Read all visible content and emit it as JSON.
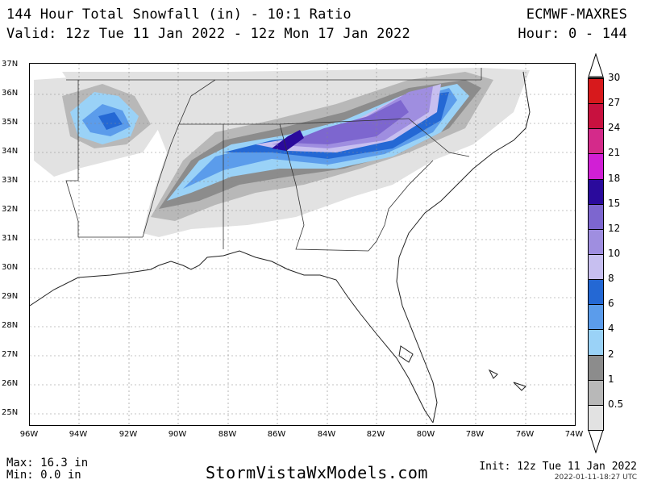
{
  "header": {
    "title": "144 Hour Total Snowfall (in) - 10:1 Ratio",
    "valid": "Valid: 12z Tue 11 Jan 2022 - 12z Mon 17 Jan 2022",
    "model": "ECMWF-MAXRES",
    "hour": "Hour: 0 - 144"
  },
  "map": {
    "lat_labels": [
      "37N",
      "36N",
      "35N",
      "34N",
      "33N",
      "32N",
      "31N",
      "30N",
      "29N",
      "28N",
      "27N",
      "26N",
      "25N"
    ],
    "lon_labels": [
      "96W",
      "94W",
      "92W",
      "90W",
      "88W",
      "86W",
      "84W",
      "82W",
      "80W",
      "78W",
      "76W",
      "74W"
    ]
  },
  "legend": {
    "labels": [
      "30",
      "27",
      "24",
      "21",
      "18",
      "15",
      "12",
      "10",
      "8",
      "6",
      "4",
      "2",
      "1",
      "0.5"
    ],
    "colors": [
      "#d7191c",
      "#c8113f",
      "#d42a8a",
      "#d11fd5",
      "#2a0a9c",
      "#7d66cf",
      "#9f8ee0",
      "#c7bff0",
      "#2468d4",
      "#5b9ceb",
      "#9ad2f7",
      "#8c8c8c",
      "#b8b8b8",
      "#e2e2e2"
    ]
  },
  "footer": {
    "max": "Max: 16.3 in",
    "min": "Min: 0.0 in",
    "site": "StormVistaWxModels.com",
    "init": "Init: 12z Tue 11 Jan 2022",
    "stamp": "2022-01-11-18:27 UTC"
  }
}
